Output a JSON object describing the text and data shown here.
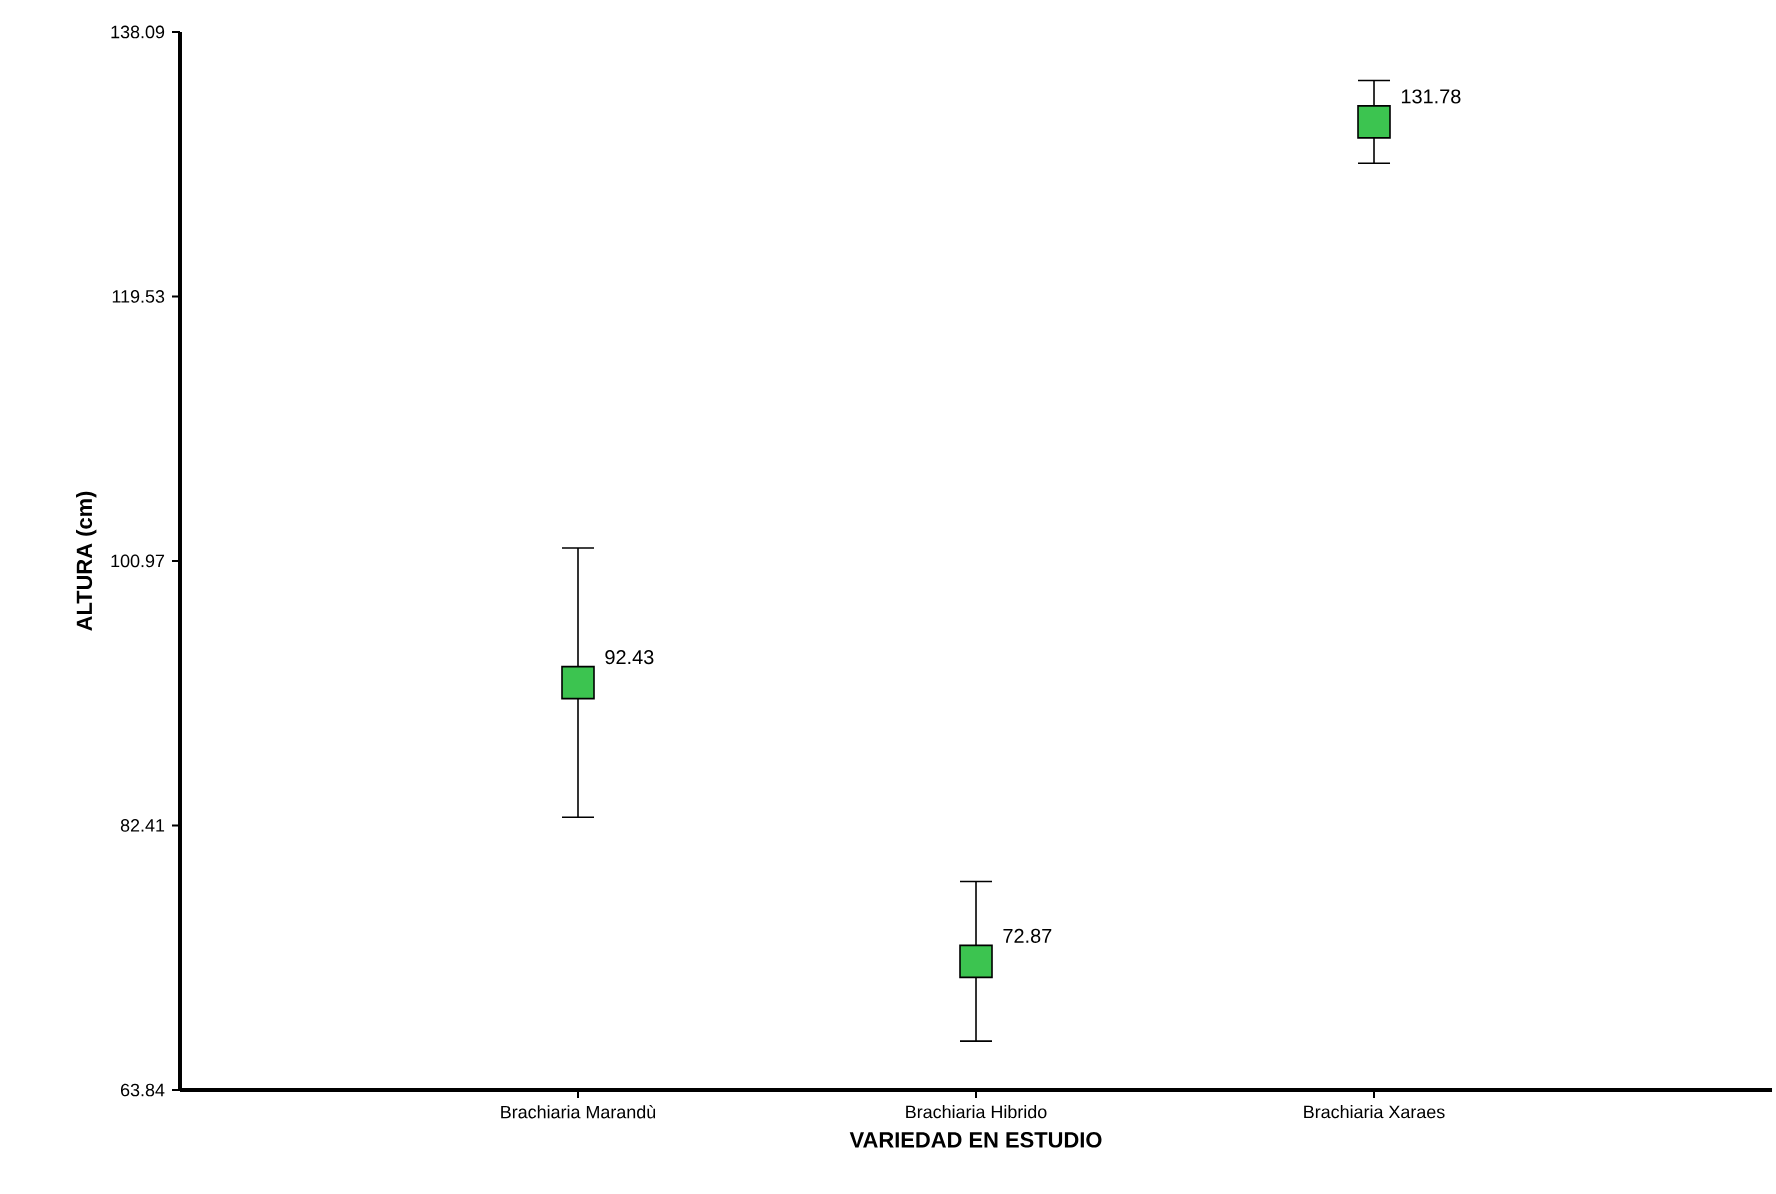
{
  "chart_data": {
    "type": "scatter",
    "xlabel": "VARIEDAD EN ESTUDIO",
    "ylabel": "ALTURA (cm)",
    "categories": [
      "Brachiaria Marandù",
      "Brachiaria Hibrido",
      "Brachiaria Xaraes"
    ],
    "values": [
      92.43,
      72.87,
      131.78
    ],
    "errors": [
      9.45,
      5.6,
      2.9
    ],
    "color": "#3cc450",
    "marker": "square",
    "data_labels": true,
    "ylim": [
      63.84,
      138.09
    ],
    "yticks": [
      63.84,
      82.41,
      100.97,
      119.53,
      138.09
    ],
    "grid": false
  }
}
